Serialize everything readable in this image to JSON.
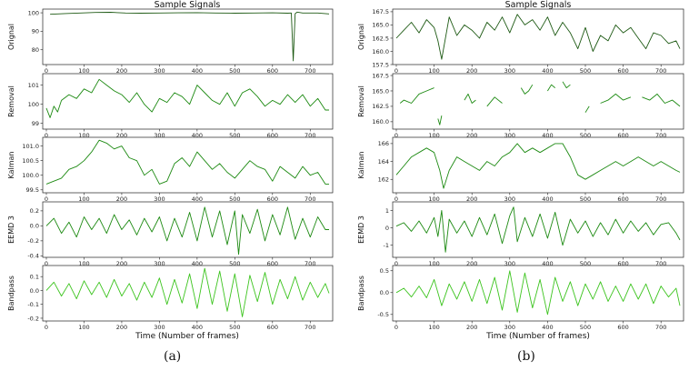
{
  "colors": {
    "dark_green": "#1e5a14",
    "mid_green": "#1d8a12",
    "bright_green": "#3cc41e",
    "axis": "#222222"
  },
  "figures": [
    {
      "title": "Sample Signals",
      "xlabel": "Time (Number of frames)",
      "caption": "(a)",
      "x_ticks": [
        0,
        100,
        200,
        300,
        400,
        500,
        600,
        700
      ]
    },
    {
      "title": "Sample Signals",
      "xlabel": "Time (Number of frames)",
      "caption": "(b)",
      "x_ticks": [
        0,
        100,
        200,
        300,
        400,
        500,
        600,
        700
      ]
    }
  ],
  "chart_data": [
    {
      "type": "line",
      "panel": "a-1",
      "ylabel": "Orignal",
      "x_range": [
        0,
        750
      ],
      "ylim": [
        72,
        102
      ],
      "y_ticks": [
        80,
        90,
        100
      ],
      "color": "dark_green",
      "series": [
        {
          "x": [
            10,
            50,
            90,
            130,
            170,
            210,
            250,
            300,
            350,
            400,
            450,
            500,
            550,
            600,
            640,
            650,
            655,
            660,
            665,
            680,
            720,
            750
          ],
          "y": [
            99.2,
            99.6,
            99.9,
            100.2,
            100.3,
            99.9,
            99.8,
            99.9,
            100.0,
            100.1,
            99.9,
            99.8,
            99.9,
            100.0,
            99.8,
            99.9,
            74,
            99.5,
            100.4,
            99.9,
            99.9,
            99.4
          ]
        }
      ]
    },
    {
      "type": "line",
      "panel": "a-2",
      "ylabel": "Removal",
      "x_range": [
        0,
        750
      ],
      "ylim": [
        98.7,
        101.6
      ],
      "y_ticks": [
        99,
        100,
        101
      ],
      "color": "mid_green",
      "series": [
        {
          "x": [
            0,
            10,
            20,
            30,
            40,
            60,
            80,
            100,
            120,
            140,
            160,
            180,
            200,
            220,
            240,
            260,
            280,
            300,
            320,
            340,
            360,
            380,
            400,
            420,
            440,
            460,
            480,
            500,
            520,
            540,
            560,
            580,
            600,
            620,
            640,
            660,
            680,
            700,
            720,
            740,
            750
          ],
          "y": [
            99.8,
            99.3,
            99.9,
            99.6,
            100.2,
            100.5,
            100.3,
            100.8,
            100.6,
            101.3,
            101.0,
            100.7,
            100.5,
            100.1,
            100.6,
            100.0,
            99.6,
            100.3,
            100.1,
            100.6,
            100.4,
            100.0,
            101.0,
            100.6,
            100.2,
            100.0,
            100.6,
            99.9,
            100.6,
            100.8,
            100.4,
            99.9,
            100.2,
            100.0,
            100.5,
            100.1,
            100.5,
            99.9,
            100.3,
            99.7,
            99.7
          ]
        }
      ]
    },
    {
      "type": "line",
      "panel": "a-3",
      "ylabel": "Kalman",
      "x_range": [
        0,
        750
      ],
      "ylim": [
        99.4,
        101.3
      ],
      "y_ticks": [
        99.5,
        100.0,
        100.5,
        101.0
      ],
      "color": "mid_green",
      "series": [
        {
          "x": [
            0,
            20,
            40,
            60,
            80,
            100,
            120,
            140,
            160,
            180,
            200,
            220,
            240,
            260,
            280,
            300,
            320,
            340,
            360,
            380,
            400,
            420,
            440,
            460,
            480,
            500,
            520,
            540,
            560,
            580,
            600,
            620,
            640,
            660,
            680,
            700,
            720,
            740,
            750
          ],
          "y": [
            99.7,
            99.8,
            99.9,
            100.2,
            100.3,
            100.5,
            100.8,
            101.2,
            101.1,
            100.9,
            101.0,
            100.6,
            100.5,
            100.0,
            100.2,
            99.7,
            99.8,
            100.4,
            100.6,
            100.3,
            100.8,
            100.5,
            100.2,
            100.4,
            100.1,
            99.9,
            100.2,
            100.5,
            100.3,
            100.2,
            99.8,
            100.3,
            100.1,
            99.9,
            100.3,
            100.0,
            100.1,
            99.7,
            99.7
          ]
        }
      ]
    },
    {
      "type": "line",
      "panel": "a-4",
      "ylabel": "EEMD 3",
      "x_range": [
        0,
        750
      ],
      "ylim": [
        -0.42,
        0.32
      ],
      "y_ticks": [
        -0.4,
        -0.2,
        0.0,
        0.2
      ],
      "color": "mid_green",
      "series": [
        {
          "x": [
            0,
            20,
            40,
            60,
            80,
            100,
            120,
            140,
            160,
            180,
            200,
            220,
            240,
            260,
            280,
            300,
            320,
            340,
            360,
            380,
            400,
            420,
            440,
            460,
            480,
            500,
            510,
            520,
            540,
            560,
            580,
            600,
            620,
            640,
            660,
            680,
            700,
            720,
            740,
            750
          ],
          "y": [
            0.0,
            0.1,
            -0.1,
            0.05,
            -0.15,
            0.12,
            -0.05,
            0.1,
            -0.1,
            0.15,
            -0.05,
            0.08,
            -0.12,
            0.1,
            -0.08,
            0.12,
            -0.2,
            0.1,
            -0.15,
            0.18,
            -0.2,
            0.25,
            -0.15,
            0.2,
            -0.25,
            0.2,
            -0.38,
            0.15,
            -0.1,
            0.22,
            -0.2,
            0.15,
            -0.12,
            0.25,
            -0.18,
            0.1,
            -0.15,
            0.12,
            -0.05,
            -0.05
          ]
        }
      ]
    },
    {
      "type": "line",
      "panel": "a-5",
      "ylabel": "Bandpass",
      "x_range": [
        0,
        750
      ],
      "ylim": [
        -0.22,
        0.18
      ],
      "y_ticks": [
        -0.2,
        -0.1,
        0.0,
        0.1
      ],
      "color": "bright_green",
      "series": [
        {
          "x": [
            0,
            20,
            40,
            60,
            80,
            100,
            120,
            140,
            160,
            180,
            200,
            220,
            240,
            260,
            280,
            300,
            320,
            340,
            360,
            380,
            400,
            420,
            440,
            460,
            480,
            500,
            520,
            540,
            560,
            580,
            600,
            620,
            640,
            660,
            680,
            700,
            720,
            740,
            750
          ],
          "y": [
            0.0,
            0.06,
            -0.04,
            0.05,
            -0.06,
            0.07,
            -0.03,
            0.06,
            -0.05,
            0.08,
            -0.04,
            0.05,
            -0.07,
            0.06,
            -0.05,
            0.09,
            -0.1,
            0.08,
            -0.09,
            0.12,
            -0.13,
            0.16,
            -0.1,
            0.14,
            -0.15,
            0.12,
            -0.19,
            0.11,
            -0.08,
            0.13,
            -0.1,
            0.08,
            -0.06,
            0.1,
            -0.07,
            0.06,
            -0.05,
            0.05,
            -0.02
          ]
        }
      ]
    },
    {
      "type": "line",
      "panel": "b-1",
      "ylabel": "Orignal",
      "x_range": [
        0,
        750
      ],
      "ylim": [
        157.5,
        168.0
      ],
      "y_ticks": [
        157.5,
        160.0,
        162.5,
        165.0,
        167.5
      ],
      "color": "dark_green",
      "series": [
        {
          "x": [
            0,
            20,
            40,
            60,
            80,
            100,
            110,
            120,
            140,
            160,
            180,
            200,
            220,
            240,
            260,
            280,
            300,
            320,
            340,
            360,
            380,
            400,
            420,
            440,
            460,
            480,
            500,
            520,
            540,
            560,
            580,
            600,
            620,
            640,
            660,
            680,
            700,
            720,
            740,
            750
          ],
          "y": [
            162.5,
            164.0,
            165.5,
            163.5,
            166.0,
            164.5,
            162.0,
            158.5,
            166.5,
            163.0,
            165.0,
            164.0,
            162.5,
            165.5,
            164.0,
            166.5,
            163.5,
            167.0,
            165.0,
            166.0,
            164.0,
            166.5,
            163.0,
            165.5,
            163.5,
            160.5,
            164.5,
            160.0,
            163.0,
            162.0,
            165.0,
            163.5,
            164.5,
            162.5,
            160.5,
            163.5,
            163.0,
            161.5,
            162.0,
            160.5
          ]
        }
      ]
    },
    {
      "type": "line",
      "panel": "b-2",
      "ylabel": "Removal",
      "x_range": [
        0,
        750
      ],
      "ylim": [
        158.8,
        167.8
      ],
      "y_ticks": [
        160.0,
        162.5,
        165.0,
        167.5
      ],
      "color": "mid_green",
      "series": [
        {
          "x": [
            10,
            20,
            40,
            60,
            80,
            100
          ],
          "y": [
            163.0,
            163.5,
            163.0,
            164.5,
            165.0,
            165.5
          ]
        },
        {
          "x": [
            110,
            115,
            120
          ],
          "y": [
            160.5,
            159.5,
            161.0
          ]
        },
        {
          "x": [
            180,
            190,
            200,
            210
          ],
          "y": [
            163.5,
            164.5,
            163.0,
            163.5
          ]
        },
        {
          "x": [
            240,
            260,
            280
          ],
          "y": [
            162.5,
            164.0,
            163.0
          ]
        },
        {
          "x": [
            330,
            340,
            350,
            360
          ],
          "y": [
            165.5,
            164.5,
            165.0,
            166.0
          ]
        },
        {
          "x": [
            400,
            410,
            420
          ],
          "y": [
            165.0,
            166.0,
            165.5
          ]
        },
        {
          "x": [
            440,
            450,
            460
          ],
          "y": [
            166.5,
            165.5,
            166.0
          ]
        },
        {
          "x": [
            500,
            510
          ],
          "y": [
            161.5,
            162.5
          ]
        },
        {
          "x": [
            540,
            560,
            580,
            600,
            620
          ],
          "y": [
            163.0,
            163.5,
            164.5,
            163.5,
            164.0
          ]
        },
        {
          "x": [
            650,
            670,
            690,
            710,
            730,
            750
          ],
          "y": [
            164.0,
            163.5,
            164.5,
            163.0,
            163.5,
            162.5
          ]
        }
      ]
    },
    {
      "type": "line",
      "panel": "b-3",
      "ylabel": "Kalman",
      "x_range": [
        0,
        750
      ],
      "ylim": [
        160.5,
        166.7
      ],
      "y_ticks": [
        162,
        164,
        166
      ],
      "color": "mid_green",
      "series": [
        {
          "x": [
            0,
            20,
            40,
            60,
            80,
            100,
            115,
            125,
            140,
            160,
            180,
            200,
            220,
            240,
            260,
            280,
            300,
            320,
            340,
            360,
            380,
            400,
            420,
            440,
            460,
            480,
            500,
            520,
            540,
            560,
            580,
            600,
            620,
            640,
            660,
            680,
            700,
            720,
            740,
            750
          ],
          "y": [
            162.5,
            163.5,
            164.5,
            165.0,
            165.5,
            165.0,
            163.0,
            161.0,
            163.0,
            164.5,
            164.0,
            163.5,
            163.0,
            164.0,
            163.5,
            164.5,
            165.0,
            166.0,
            165.0,
            165.5,
            165.0,
            165.5,
            166.0,
            166.0,
            164.5,
            162.5,
            162.0,
            162.5,
            163.0,
            163.5,
            164.0,
            163.5,
            164.0,
            164.5,
            164.0,
            163.5,
            164.0,
            163.5,
            163.0,
            162.8
          ]
        }
      ]
    },
    {
      "type": "line",
      "panel": "b-4",
      "ylabel": "EEMD 3",
      "x_range": [
        0,
        750
      ],
      "ylim": [
        -1.7,
        1.5
      ],
      "y_ticks": [
        -1,
        0,
        1
      ],
      "color": "mid_green",
      "series": [
        {
          "x": [
            0,
            20,
            40,
            60,
            80,
            100,
            110,
            120,
            130,
            140,
            160,
            180,
            200,
            220,
            240,
            260,
            280,
            300,
            310,
            320,
            340,
            360,
            380,
            400,
            420,
            440,
            460,
            480,
            500,
            520,
            540,
            560,
            580,
            600,
            620,
            640,
            660,
            680,
            700,
            720,
            740,
            750
          ],
          "y": [
            0.1,
            0.3,
            -0.2,
            0.4,
            -0.3,
            0.6,
            -0.5,
            1.0,
            -1.4,
            0.5,
            -0.3,
            0.4,
            -0.5,
            0.6,
            -0.4,
            0.8,
            -0.9,
            0.7,
            1.2,
            -0.8,
            0.6,
            -0.5,
            0.8,
            -0.6,
            0.9,
            -1.0,
            0.5,
            -0.3,
            0.4,
            -0.5,
            0.3,
            -0.4,
            0.5,
            -0.3,
            0.4,
            -0.2,
            0.3,
            -0.4,
            0.2,
            0.3,
            -0.3,
            -0.7
          ]
        }
      ]
    },
    {
      "type": "line",
      "panel": "b-5",
      "ylabel": "Bandpass",
      "x_range": [
        0,
        750
      ],
      "ylim": [
        -0.65,
        0.62
      ],
      "y_ticks": [
        -0.5,
        0.0,
        0.5
      ],
      "color": "bright_green",
      "series": [
        {
          "x": [
            0,
            20,
            40,
            60,
            80,
            100,
            120,
            140,
            160,
            180,
            200,
            220,
            240,
            260,
            280,
            300,
            320,
            340,
            360,
            380,
            400,
            420,
            440,
            460,
            480,
            500,
            520,
            540,
            560,
            580,
            600,
            620,
            640,
            660,
            680,
            700,
            720,
            740,
            750
          ],
          "y": [
            0.0,
            0.1,
            -0.1,
            0.15,
            -0.12,
            0.3,
            -0.3,
            0.2,
            -0.15,
            0.25,
            -0.2,
            0.3,
            -0.25,
            0.35,
            -0.4,
            0.5,
            -0.45,
            0.45,
            -0.35,
            0.3,
            -0.5,
            0.35,
            -0.2,
            0.25,
            -0.3,
            0.2,
            -0.15,
            0.25,
            -0.2,
            0.15,
            -0.2,
            0.2,
            -0.15,
            0.2,
            -0.25,
            0.15,
            -0.1,
            0.1,
            -0.3
          ]
        }
      ]
    }
  ]
}
